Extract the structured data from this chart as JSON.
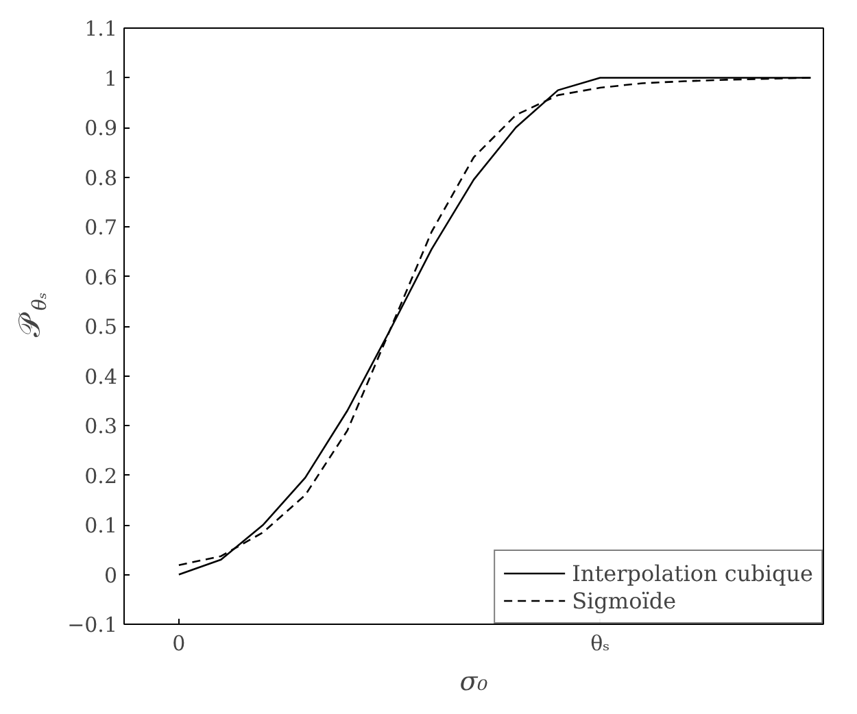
{
  "chart_data": {
    "type": "line",
    "xlabel": "σ₀",
    "ylabel": "𝒫$_{θₛ}$",
    "categories": [
      "0",
      null,
      null,
      null,
      null,
      null,
      null,
      null,
      null,
      null,
      "θₛ",
      null,
      null,
      null,
      null,
      null
    ],
    "ylim": [
      -0.1,
      1.1
    ],
    "yticks": [
      {
        "value": -0.1,
        "label": "−0.1"
      },
      0,
      0.1,
      0.2,
      0.3,
      0.4,
      0.5,
      0.6,
      0.7,
      0.8,
      0.9,
      1,
      1.1
    ],
    "grid": false,
    "legend": "bottom right",
    "marker": "none",
    "series": [
      {
        "name": "Interpolation cubique",
        "color": "#000000",
        "line_style": "solid",
        "values": [
          0,
          0.03,
          0.1,
          0.195,
          0.33,
          0.49,
          0.655,
          0.795,
          0.9,
          0.975,
          1.0,
          1.0,
          1.0,
          1.0,
          1.0,
          1.0
        ]
      },
      {
        "name": "Sigmoïde",
        "color": "#000000",
        "line_style": "dashed",
        "values": [
          0.019,
          0.037,
          0.085,
          0.16,
          0.29,
          0.49,
          0.69,
          0.84,
          0.925,
          0.965,
          0.98,
          0.989,
          0.993,
          0.996,
          0.998,
          1.0
        ]
      }
    ]
  }
}
